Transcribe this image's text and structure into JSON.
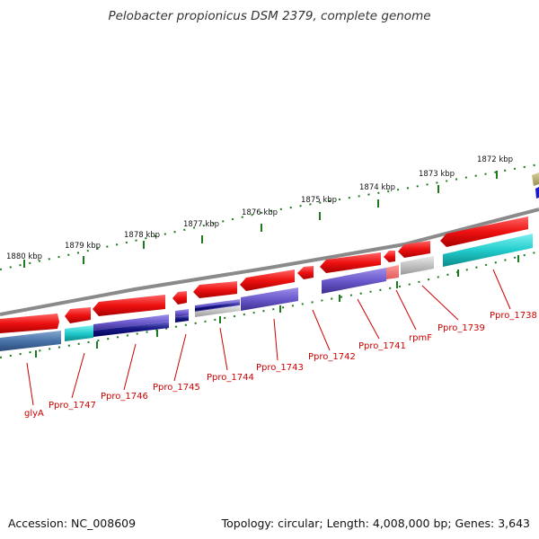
{
  "title": "Pelobacter propionicus DSM 2379, complete genome",
  "footer": {
    "accession": "Accession: NC_008609",
    "topology": "Topology: circular; Length: 4,008,000 bp; Genes: 3,643"
  },
  "colors": {
    "backbone": "#8a8a8a",
    "scale_ticks": "#1e7a1e",
    "gene_forward": "#ee1111",
    "label_text": "#cc0000"
  },
  "scale_labels": [
    "1880 kbp",
    "1879 kbp",
    "1878 kbp",
    "1877 kbp",
    "1876 kbp",
    "1875 kbp",
    "1874 kbp",
    "1873 kbp",
    "1872 kbp"
  ],
  "gene_labels": [
    "glyA",
    "Ppro_1747",
    "Ppro_1746",
    "Ppro_1745",
    "Ppro_1744",
    "Ppro_1743",
    "Ppro_1742",
    "Ppro_1741",
    "rpmF",
    "Ppro_1739",
    "Ppro_1738"
  ]
}
